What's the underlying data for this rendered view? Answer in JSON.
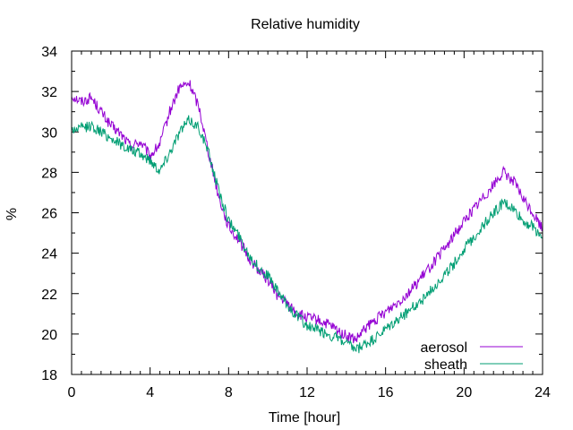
{
  "chart_data": {
    "type": "line",
    "title": "Relative humidity",
    "xlabel": "Time [hour]",
    "ylabel": "%",
    "xlim": [
      0,
      24
    ],
    "ylim": [
      18,
      34
    ],
    "xticks": [
      0,
      4,
      8,
      12,
      16,
      20,
      24
    ],
    "yticks": [
      18,
      20,
      22,
      24,
      26,
      28,
      30,
      32,
      34
    ],
    "grid": false,
    "legend_position": "bottom-right",
    "series": [
      {
        "name": "aerosol",
        "color": "#9400d3",
        "x": [
          0,
          0.5,
          1,
          1.5,
          2,
          2.5,
          3,
          3.5,
          4,
          4.5,
          5,
          5.5,
          6,
          6.5,
          7,
          7.5,
          8,
          8.5,
          9,
          9.5,
          10,
          10.5,
          11,
          11.5,
          12,
          12.5,
          13,
          13.5,
          14,
          14.5,
          15,
          15.5,
          16,
          16.5,
          17,
          17.5,
          18,
          18.5,
          19,
          19.5,
          20,
          20.5,
          21,
          21.5,
          22,
          22.5,
          23,
          23.5,
          24
        ],
        "values": [
          31.8,
          31.5,
          31.7,
          31.0,
          30.3,
          29.9,
          29.3,
          29.5,
          28.8,
          29.4,
          31.0,
          32.2,
          32.4,
          31.2,
          28.9,
          26.8,
          25.3,
          24.7,
          23.8,
          23.2,
          22.7,
          21.9,
          21.5,
          21.0,
          20.8,
          20.7,
          20.5,
          20.2,
          19.9,
          19.7,
          20.3,
          20.7,
          21.1,
          21.5,
          21.9,
          22.4,
          23.0,
          23.6,
          24.2,
          24.9,
          25.6,
          26.2,
          26.8,
          27.4,
          28.0,
          27.6,
          26.7,
          26.0,
          25.2
        ]
      },
      {
        "name": "sheath",
        "color": "#009e73",
        "x": [
          0,
          0.5,
          1,
          1.5,
          2,
          2.5,
          3,
          3.5,
          4,
          4.5,
          5,
          5.5,
          6,
          6.5,
          7,
          7.5,
          8,
          8.5,
          9,
          9.5,
          10,
          10.5,
          11,
          11.5,
          12,
          12.5,
          13,
          13.5,
          14,
          14.5,
          15,
          15.5,
          16,
          16.5,
          17,
          17.5,
          18,
          18.5,
          19,
          19.5,
          20,
          20.5,
          21,
          21.5,
          22,
          22.5,
          23,
          23.5,
          24
        ],
        "values": [
          30.1,
          30.2,
          30.3,
          30.0,
          29.7,
          29.4,
          29.1,
          28.9,
          28.6,
          28.1,
          29.0,
          30.0,
          30.6,
          30.2,
          28.9,
          27.1,
          25.6,
          24.9,
          24.0,
          23.3,
          22.9,
          22.1,
          21.4,
          20.9,
          20.4,
          20.2,
          20.0,
          19.8,
          19.5,
          19.2,
          19.5,
          19.8,
          20.2,
          20.6,
          21.0,
          21.4,
          21.8,
          22.4,
          22.9,
          23.5,
          24.2,
          24.8,
          25.4,
          26.0,
          26.5,
          26.2,
          25.6,
          25.3,
          24.8
        ]
      }
    ]
  }
}
